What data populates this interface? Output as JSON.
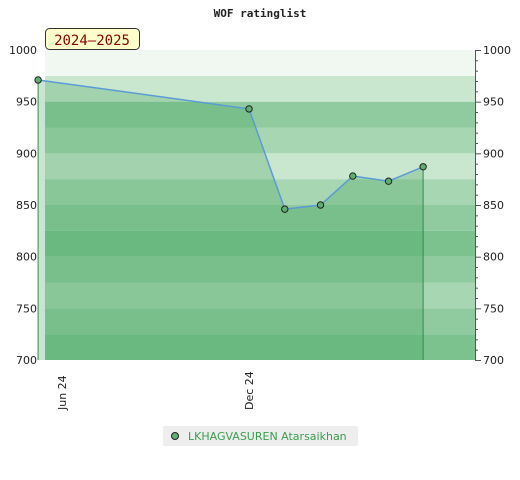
{
  "chart_data": {
    "type": "area",
    "title": "WOF ratinglist",
    "season_badge": "2024–2025",
    "xlabel": "",
    "ylabel": "",
    "ylim": [
      700,
      1000
    ],
    "xlim": [
      "2024-06-07",
      "2025-06-15"
    ],
    "y_ticks": [
      700,
      750,
      800,
      850,
      900,
      950,
      1000
    ],
    "x_ticks": [
      {
        "date": "2024-06-01",
        "label": "Jun 24"
      },
      {
        "date": "2024-12-01",
        "label": "Dec 24"
      }
    ],
    "grid": true,
    "legend_position": "bottom-center",
    "series": [
      {
        "name": "LKHAGVASUREN Atarsaikhan",
        "color": "#3a9e4f",
        "line_color": "#5b9bd5",
        "points": [
          {
            "x": "2024-06-01",
            "y": 971
          },
          {
            "x": "2024-12-01",
            "y": 943
          },
          {
            "x": "2025-01-01",
            "y": 846
          },
          {
            "x": "2025-02-01",
            "y": 850
          },
          {
            "x": "2025-03-01",
            "y": 878
          },
          {
            "x": "2025-04-01",
            "y": 873
          },
          {
            "x": "2025-05-01",
            "y": 887
          }
        ]
      }
    ]
  },
  "colors": {
    "band_colors": [
      "#7bc28f",
      "#8fcb9e",
      "#a7d6b2",
      "#c9e6cf",
      "#f0f8f1"
    ],
    "badge_bg": "#ffffcc",
    "badge_text": "#8b0000",
    "legend_bg": "#eeeeee",
    "legend_text": "#3a9e4f"
  }
}
